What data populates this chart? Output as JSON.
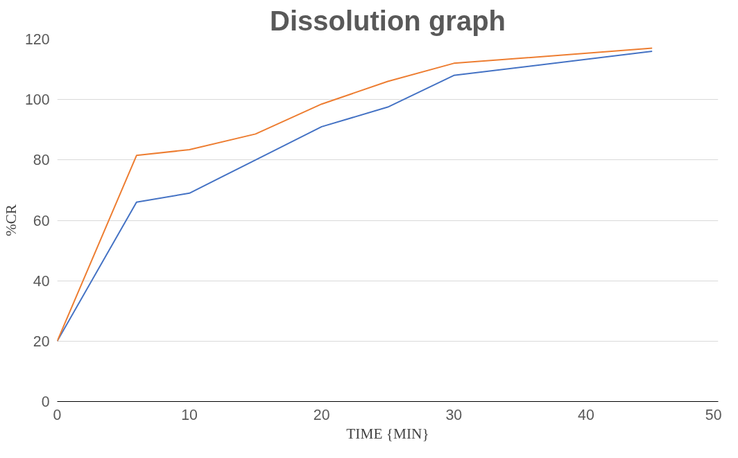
{
  "chart_data": {
    "type": "line",
    "title": "Dissolution graph",
    "xlabel": "TIME {MIN}",
    "ylabel": "%CR",
    "x": [
      0,
      6,
      10,
      15,
      20,
      25,
      30,
      45
    ],
    "series": [
      {
        "color": "#4472c4",
        "values": [
          20,
          66,
          69,
          80,
          91,
          97.5,
          108,
          116
        ]
      },
      {
        "color": "#ed7d31",
        "values": [
          20,
          81.5,
          83.4,
          88.6,
          98.5,
          106,
          112,
          117
        ]
      }
    ],
    "xlim": [
      0,
      50
    ],
    "xticks": [
      0,
      10,
      20,
      30,
      40,
      50
    ],
    "ylim": [
      0,
      120
    ],
    "yticks": [
      0,
      20,
      40,
      60,
      80,
      100,
      120
    ],
    "grid": "y",
    "marker": "none",
    "line_style": "solid"
  }
}
